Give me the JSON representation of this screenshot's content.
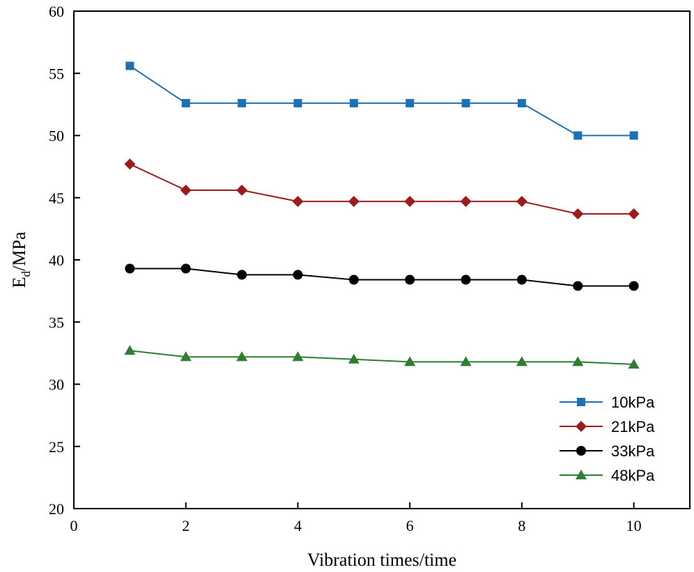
{
  "chart_data": {
    "type": "line",
    "xlabel": "Vibration times/time",
    "ylabel": {
      "main": "E",
      "sub": "d",
      "suffix": "/MPa"
    },
    "xlim": [
      0,
      11
    ],
    "ylim": [
      20,
      60
    ],
    "xticks": [
      0,
      2,
      4,
      6,
      8,
      10
    ],
    "yticks": [
      20,
      25,
      30,
      35,
      40,
      45,
      50,
      55,
      60
    ],
    "x": [
      1,
      2,
      3,
      4,
      5,
      6,
      7,
      8,
      9,
      10
    ],
    "grid": false,
    "legend_position": "bottom-right",
    "series": [
      {
        "name": "10kPa",
        "marker": "square",
        "color": "#1f6fb3",
        "values": [
          55.6,
          52.6,
          52.6,
          52.6,
          52.6,
          52.6,
          52.6,
          52.6,
          50.0,
          50.0
        ]
      },
      {
        "name": "21kPa",
        "marker": "diamond",
        "color": "#9b1c1c",
        "values": [
          47.7,
          45.6,
          45.6,
          44.7,
          44.7,
          44.7,
          44.7,
          44.7,
          43.7,
          43.7
        ]
      },
      {
        "name": "33kPa",
        "marker": "circle",
        "color": "#000000",
        "values": [
          39.3,
          39.3,
          38.8,
          38.8,
          38.4,
          38.4,
          38.4,
          38.4,
          37.9,
          37.9
        ]
      },
      {
        "name": "48kPa",
        "marker": "triangle",
        "color": "#2e7d32",
        "values": [
          32.7,
          32.2,
          32.2,
          32.2,
          32.0,
          31.8,
          31.8,
          31.8,
          31.8,
          31.6
        ]
      }
    ]
  }
}
